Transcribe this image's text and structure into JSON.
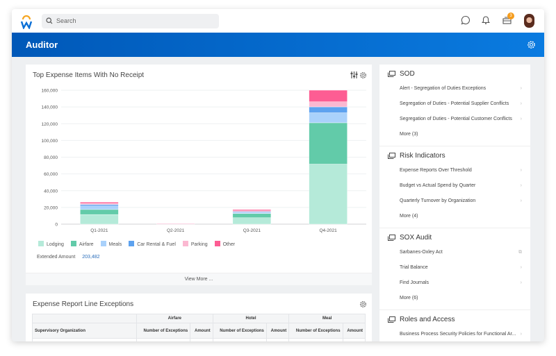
{
  "header": {
    "search_placeholder": "Search",
    "notification_badge": "3",
    "brand_colors": {
      "logo_w": "#0a6fd6",
      "logo_arc": "#f5a623"
    }
  },
  "banner": {
    "title": "Auditor",
    "color": "#0a6fd6"
  },
  "expense_card": {
    "title": "Top Expense Items With No Receipt",
    "extended_amount_label": "Extended Amount",
    "extended_amount": "203,482",
    "view_more": "View More ..."
  },
  "chart_data": {
    "type": "bar",
    "stacked": true,
    "title": "Top Expense Items With No Receipt",
    "categories": [
      "Q1-2021",
      "Q2-2021",
      "Q3-2021",
      "Q4-2021"
    ],
    "ylim": [
      0,
      160000
    ],
    "yticks": [
      "0",
      "20,000",
      "40,000",
      "60,000",
      "80,000",
      "100,000",
      "120,000",
      "140,000",
      "160,000"
    ],
    "grid": true,
    "legend": "bottom",
    "series": [
      {
        "name": "Lodging",
        "color": "#b5ead9",
        "values": [
          11500,
          0,
          7700,
          71700
        ]
      },
      {
        "name": "Airfare",
        "color": "#62cba9",
        "values": [
          6000,
          0,
          5000,
          49400
        ]
      },
      {
        "name": "Meals",
        "color": "#a9d1fb",
        "values": [
          4300,
          0,
          1100,
          11900
        ]
      },
      {
        "name": "Car Rental & Fuel",
        "color": "#5da2ef",
        "values": [
          1700,
          0,
          1100,
          7100
        ]
      },
      {
        "name": "Parking",
        "color": "#fbb8d1",
        "values": [
          1100,
          800,
          1100,
          6100
        ]
      },
      {
        "name": "Other",
        "color": "#fd5d93",
        "values": [
          1600,
          0,
          1400,
          13800
        ]
      }
    ]
  },
  "exceptions_card": {
    "title": "Expense Report Line Exceptions",
    "groups": [
      "Airfare",
      "Hotel",
      "Meal"
    ],
    "columns": [
      "Supervisory Organization",
      "Number of Exceptions",
      "Amount",
      "Number of Exceptions",
      "Amount",
      "Number of Exceptions",
      "Amount"
    ]
  },
  "right_panel": {
    "sections": [
      {
        "title": "SOD",
        "items": [
          "Alert - Segregation of Duties Exceptions",
          "Segregation of Duties - Potential Supplier Conflicts",
          "Segregation of Duties - Potential Customer Conflicts"
        ],
        "more": "More (3)"
      },
      {
        "title": "Risk Indicators",
        "items": [
          "Expense Reports Over Threshold",
          "Budget vs Actual Spend by Quarter",
          "Quarterly Turnover by Organization"
        ],
        "more": "More (4)"
      },
      {
        "title": "SOX Audit",
        "items": [
          "Sarbanes-Oxley Act",
          "Trial Balance",
          "Find Journals"
        ],
        "more": "More (6)"
      },
      {
        "title": "Roles and Access",
        "items": [
          "Business Process Security Policies for Functional Ar..."
        ]
      }
    ]
  }
}
